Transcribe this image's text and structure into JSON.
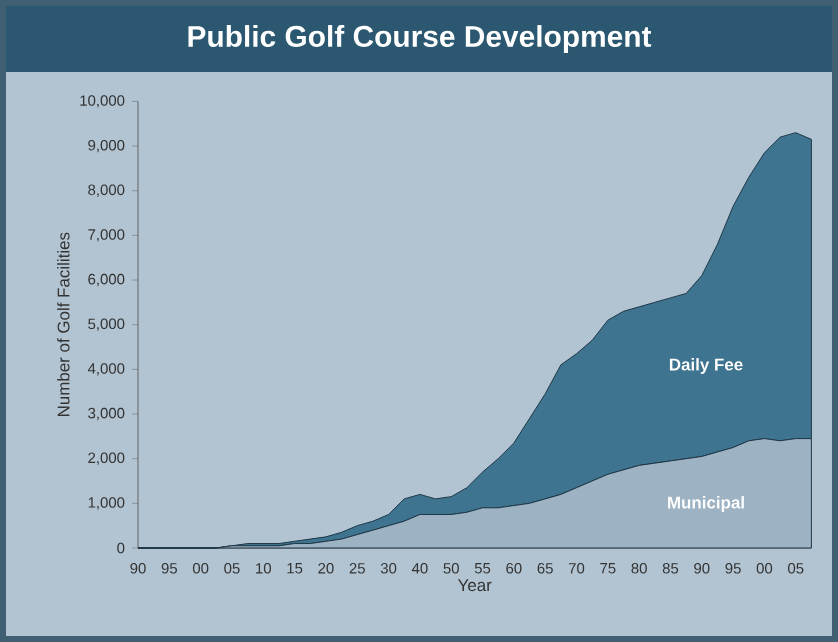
{
  "chart_data": {
    "type": "area",
    "title": "Public Golf Course Development",
    "xlabel": "Year",
    "ylabel": "Number of Golf Facilities",
    "categories": [
      "90",
      null,
      "95",
      null,
      "00",
      null,
      "05",
      null,
      "10",
      null,
      "15",
      null,
      "20",
      null,
      "25",
      null,
      "30",
      null,
      "40",
      null,
      "50",
      null,
      "55",
      null,
      "60",
      null,
      "65",
      null,
      "70",
      null,
      "75",
      null,
      "80",
      null,
      "85",
      null,
      "90",
      null,
      "95",
      null,
      "00",
      null,
      "05",
      null
    ],
    "stacked": true,
    "legend": false,
    "grid": false,
    "ylim": [
      0,
      10000
    ],
    "yticks": [
      0,
      {
        "value": 1000,
        "label": "1,000"
      },
      {
        "value": 2000,
        "label": "2,000"
      },
      {
        "value": 3000,
        "label": "3,000"
      },
      {
        "value": 4000,
        "label": "4,000"
      },
      {
        "value": 5000,
        "label": "5,000"
      },
      {
        "value": 6000,
        "label": "6,000"
      },
      {
        "value": 7000,
        "label": "7,000"
      },
      {
        "value": 8000,
        "label": "8,000"
      },
      {
        "value": 9000,
        "label": "9,000"
      },
      {
        "value": 10000,
        "label": "10,000"
      }
    ],
    "series": [
      {
        "name": "Municipal",
        "color": "#9db2c3",
        "values": [
          0,
          0,
          0,
          0,
          0,
          0,
          50,
          50,
          50,
          50,
          100,
          100,
          150,
          200,
          300,
          400,
          500,
          600,
          750,
          750,
          750,
          800,
          900,
          900,
          950,
          1000,
          1100,
          1200,
          1350,
          1500,
          1650,
          1750,
          1850,
          1900,
          1950,
          2000,
          2050,
          2150,
          2250,
          2400,
          2450,
          2400,
          2450,
          2450
        ]
      },
      {
        "name": "Daily Fee",
        "color": "#3f7490",
        "values": [
          0,
          0,
          0,
          0,
          0,
          0,
          0,
          50,
          50,
          50,
          50,
          100,
          100,
          150,
          200,
          200,
          250,
          500,
          450,
          350,
          400,
          550,
          800,
          1100,
          1400,
          1900,
          2350,
          2900,
          3000,
          3150,
          3450,
          3550,
          3550,
          3600,
          3650,
          3700,
          4050,
          4650,
          5400,
          5900,
          6400,
          6800,
          6850,
          6700
        ]
      }
    ]
  }
}
